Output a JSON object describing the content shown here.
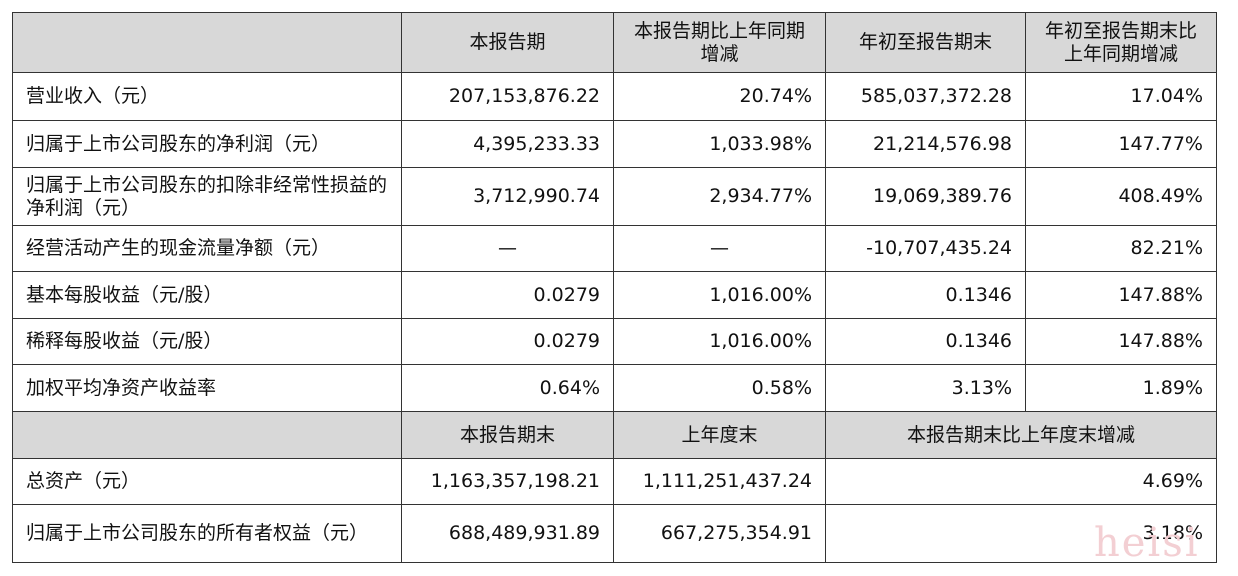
{
  "header1": [
    "",
    "本报告期",
    "本报告期比上年同期增减",
    "年初至报告期末",
    "年初至报告期末比上年同期增减"
  ],
  "rows1": [
    {
      "label": "营业收入（元）",
      "v1": "207,153,876.22",
      "v2": "20.74%",
      "v3": "585,037,372.28",
      "v4": "17.04%"
    },
    {
      "label": "归属于上市公司股东的净利润（元）",
      "v1": "4,395,233.33",
      "v2": "1,033.98%",
      "v3": "21,214,576.98",
      "v4": "147.77%"
    },
    {
      "label": "归属于上市公司股东的扣除非经常性损益的净利润（元）",
      "v1": "3,712,990.74",
      "v2": "2,934.77%",
      "v3": "19,069,389.76",
      "v4": "408.49%"
    },
    {
      "label": "经营活动产生的现金流量净额（元）",
      "v1": "—",
      "v2": "—",
      "v3": "-10,707,435.24",
      "v4": "82.21%"
    },
    {
      "label": "基本每股收益（元/股）",
      "v1": "0.0279",
      "v2": "1,016.00%",
      "v3": "0.1346",
      "v4": "147.88%"
    },
    {
      "label": "稀释每股收益（元/股）",
      "v1": "0.0279",
      "v2": "1,016.00%",
      "v3": "0.1346",
      "v4": "147.88%"
    },
    {
      "label": "加权平均净资产收益率",
      "v1": "0.64%",
      "v2": "0.58%",
      "v3": "3.13%",
      "v4": "1.89%"
    }
  ],
  "header2": [
    "",
    "本报告期末",
    "上年度末",
    "本报告期末比上年度末增减"
  ],
  "rows2": [
    {
      "label": "总资产（元）",
      "v1": "1,163,357,198.21",
      "v2": "1,111,251,437.24",
      "v3": "4.69%"
    },
    {
      "label": "归属于上市公司股东的所有者权益（元）",
      "v1": "688,489,931.89",
      "v2": "667,275,354.91",
      "v3": "3.18%"
    }
  ],
  "watermark": "heisi"
}
